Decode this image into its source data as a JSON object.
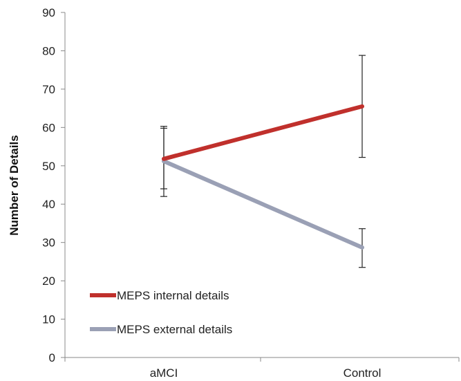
{
  "chart_data": {
    "type": "line",
    "title": "",
    "xlabel": "",
    "ylabel": "Number of Details",
    "categories": [
      "aMCI",
      "Control"
    ],
    "ylim": [
      0,
      90
    ],
    "yticks": [
      0,
      10,
      20,
      30,
      40,
      50,
      60,
      70,
      80,
      90
    ],
    "grid": false,
    "legend_position": "bottom-left",
    "series": [
      {
        "name": "MEPS internal details",
        "color": "#c0302c",
        "values": [
          51.8,
          65.5
        ],
        "error_low": [
          44,
          52.2
        ],
        "error_high": [
          59.8,
          78.8
        ]
      },
      {
        "name": "MEPS external details",
        "color": "#9aa0b5",
        "values": [
          51.2,
          28.7
        ],
        "error_low": [
          42,
          23.5
        ],
        "error_high": [
          60.3,
          33.6
        ]
      }
    ]
  }
}
